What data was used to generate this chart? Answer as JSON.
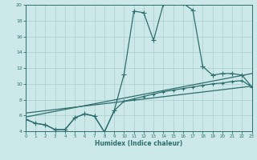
{
  "xlabel": "Humidex (Indice chaleur)",
  "background_color": "#cde8e8",
  "grid_color": "#aacece",
  "line_color": "#2d6e6e",
  "xmin": 0,
  "xmax": 23,
  "ymin": 4,
  "ymax": 20,
  "yticks": [
    4,
    6,
    8,
    10,
    12,
    14,
    16,
    18,
    20
  ],
  "xticks": [
    0,
    1,
    2,
    3,
    4,
    5,
    6,
    7,
    8,
    9,
    10,
    11,
    12,
    13,
    14,
    15,
    16,
    17,
    18,
    19,
    20,
    21,
    22,
    23
  ],
  "curve_main_x": [
    0,
    1,
    2,
    3,
    4,
    5,
    6,
    7,
    8,
    9,
    10,
    11,
    12,
    13,
    14,
    15,
    16,
    17,
    18,
    19,
    20,
    21,
    22,
    23
  ],
  "curve_main_y": [
    5.5,
    5.0,
    4.8,
    4.2,
    4.2,
    5.7,
    6.2,
    5.9,
    3.9,
    6.6,
    11.2,
    19.2,
    19.0,
    15.5,
    20.1,
    20.3,
    20.2,
    19.3,
    12.2,
    11.1,
    11.3,
    11.3,
    11.1,
    9.6
  ],
  "curve_line1_x": [
    0,
    23
  ],
  "curve_line1_y": [
    5.8,
    11.3
  ],
  "curve_line2_x": [
    0,
    23
  ],
  "curve_line2_y": [
    6.3,
    9.7
  ],
  "curve_lower_x": [
    0,
    1,
    2,
    3,
    4,
    5,
    6,
    7,
    8,
    9,
    10,
    11,
    12,
    13,
    14,
    15,
    16,
    17,
    18,
    19,
    20,
    21,
    22,
    23
  ],
  "curve_lower_y": [
    5.5,
    5.0,
    4.8,
    4.2,
    4.2,
    5.7,
    6.2,
    5.9,
    3.9,
    6.6,
    7.8,
    8.1,
    8.4,
    8.7,
    9.0,
    9.2,
    9.4,
    9.6,
    9.8,
    10.0,
    10.1,
    10.3,
    10.4,
    9.6
  ]
}
